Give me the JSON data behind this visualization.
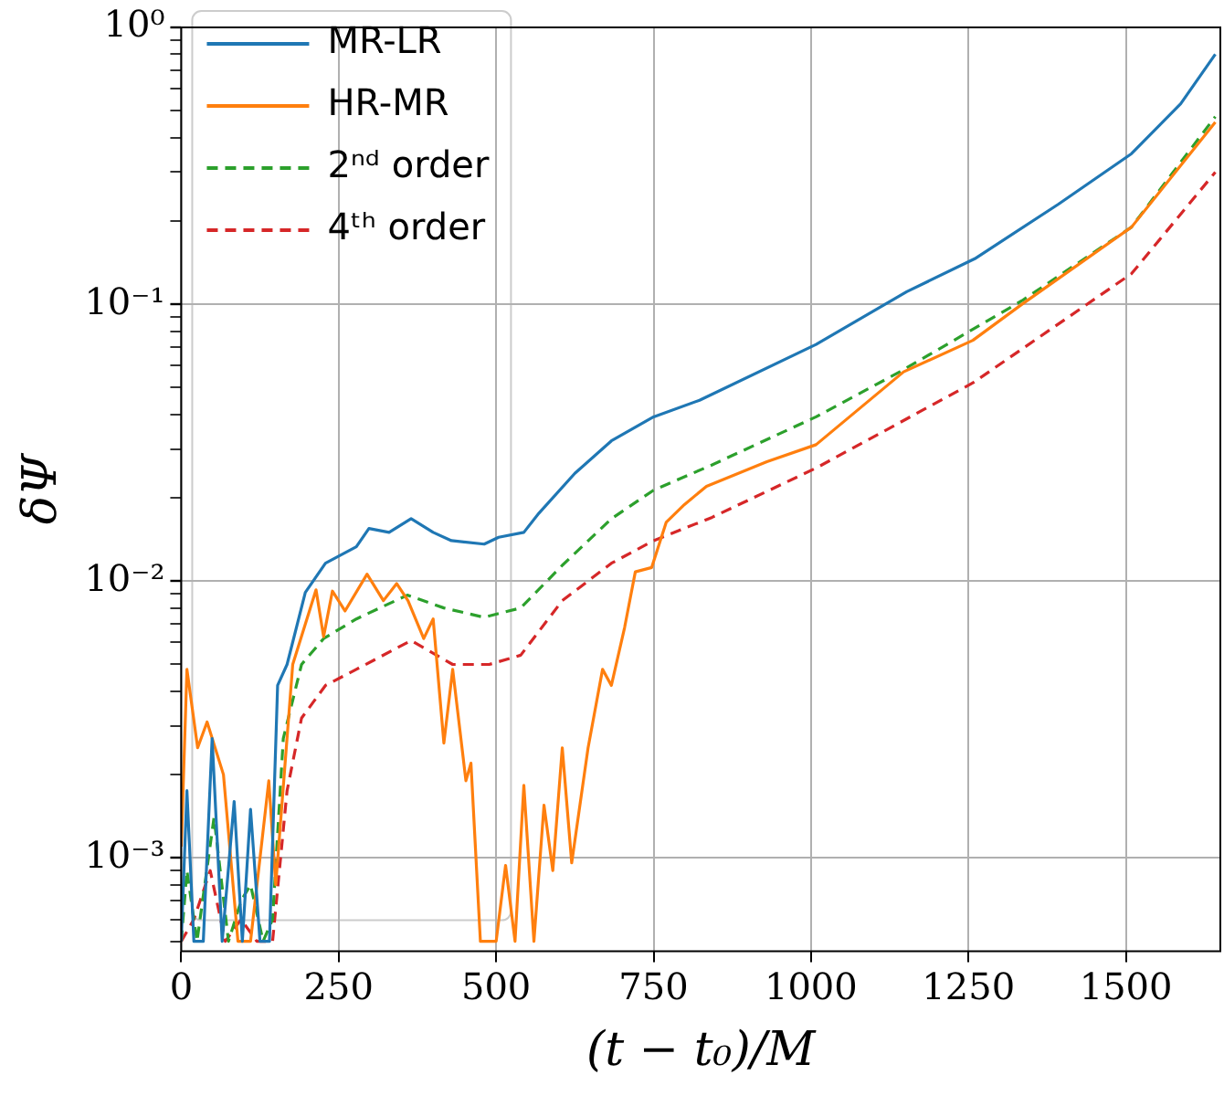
{
  "chart_data": {
    "type": "line",
    "xlabel": "(t − t₀)/M",
    "ylabel": "δΨ",
    "log": "y",
    "grid": true,
    "legend": "top left",
    "marker": "none",
    "xlim": [
      0,
      1650
    ],
    "xticks": [
      0,
      250,
      500,
      750,
      1000,
      1250,
      1500
    ],
    "ylim": [
      0.00046,
      1
    ],
    "yticks": [
      {
        "value": 1,
        "label": "10⁰"
      },
      {
        "value": 0.1,
        "label": "10⁻¹"
      },
      {
        "value": 0.01,
        "label": "10⁻²"
      },
      {
        "value": 0.001,
        "label": "10⁻³"
      },
      {
        "value": 0.0005,
        "label": null
      },
      {
        "value": 0.0006,
        "label": null
      },
      {
        "value": 0.0007,
        "label": null
      },
      {
        "value": 0.0008,
        "label": null
      },
      {
        "value": 0.0009,
        "label": null
      },
      {
        "value": 0.002,
        "label": null
      },
      {
        "value": 0.003,
        "label": null
      },
      {
        "value": 0.004,
        "label": null
      },
      {
        "value": 0.005,
        "label": null
      },
      {
        "value": 0.006,
        "label": null
      },
      {
        "value": 0.007,
        "label": null
      },
      {
        "value": 0.008,
        "label": null
      },
      {
        "value": 0.009,
        "label": null
      },
      {
        "value": 0.02,
        "label": null
      },
      {
        "value": 0.03,
        "label": null
      },
      {
        "value": 0.04,
        "label": null
      },
      {
        "value": 0.05,
        "label": null
      },
      {
        "value": 0.06,
        "label": null
      },
      {
        "value": 0.07,
        "label": null
      },
      {
        "value": 0.08,
        "label": null
      },
      {
        "value": 0.09,
        "label": null
      },
      {
        "value": 0.2,
        "label": null
      },
      {
        "value": 0.3,
        "label": null
      },
      {
        "value": 0.4,
        "label": null
      },
      {
        "value": 0.5,
        "label": null
      },
      {
        "value": 0.6,
        "label": null
      },
      {
        "value": 0.7,
        "label": null
      },
      {
        "value": 0.8,
        "label": null
      },
      {
        "value": 0.9,
        "label": null
      }
    ],
    "series": [
      {
        "name": "MR-LR",
        "color": "#1f77b4",
        "line_style": "solid",
        "x": [
          0,
          9,
          20,
          35,
          49,
          65,
          84,
          97,
          110,
          125,
          140,
          153,
          168,
          197,
          229,
          278,
          298,
          330,
          365,
          400,
          429,
          481,
          504,
          544,
          568,
          625,
          683,
          750,
          823,
          1008,
          1152,
          1260,
          1393,
          1509,
          1587,
          1642
        ],
        "values": [
          0.0005,
          0.00175,
          0.0005,
          0.0005,
          0.0027,
          0.0005,
          0.0016,
          0.0005,
          0.0015,
          0.0005,
          0.0005,
          0.0042,
          0.005,
          0.0091,
          0.0116,
          0.0133,
          0.0155,
          0.015,
          0.0168,
          0.015,
          0.014,
          0.0136,
          0.0144,
          0.015,
          0.0176,
          0.0245,
          0.0321,
          0.0392,
          0.045,
          0.0716,
          0.111,
          0.146,
          0.23,
          0.35,
          0.53,
          0.8
        ]
      },
      {
        "name": "HR-MR",
        "color": "#ff7f0e",
        "line_style": "solid",
        "x": [
          0,
          9,
          26,
          41,
          67,
          90,
          110,
          139,
          150,
          177,
          214,
          226,
          240,
          260,
          295,
          321,
          342,
          360,
          385,
          400,
          417,
          431,
          452,
          460,
          475,
          500,
          515,
          530,
          544,
          560,
          576,
          590,
          605,
          620,
          646,
          669,
          683,
          704,
          721,
          747,
          770,
          799,
          834,
          930,
          1008,
          1147,
          1257,
          1335,
          1509,
          1642
        ],
        "values": [
          0.0011,
          0.0048,
          0.0025,
          0.0031,
          0.002,
          0.0005,
          0.0005,
          0.0019,
          0.0008,
          0.005,
          0.0093,
          0.0063,
          0.0092,
          0.0078,
          0.0106,
          0.0085,
          0.0098,
          0.0085,
          0.0062,
          0.0073,
          0.0026,
          0.0048,
          0.0019,
          0.0022,
          0.0005,
          0.0005,
          0.00094,
          0.0005,
          0.00183,
          0.0005,
          0.00155,
          0.0009,
          0.0025,
          0.00096,
          0.0025,
          0.0048,
          0.0042,
          0.0068,
          0.0108,
          0.0112,
          0.0163,
          0.0189,
          0.022,
          0.027,
          0.0311,
          0.057,
          0.0741,
          0.1,
          0.19,
          0.455
        ]
      },
      {
        "name": "2ⁿᵈ order",
        "color": "#2ca02c",
        "line_style": "dashed",
        "x": [
          0,
          9,
          25,
          52,
          75,
          95,
          110,
          130,
          145,
          162,
          191,
          226,
          278,
          359,
          417,
          481,
          539,
          605,
          683,
          750,
          843,
          1008,
          1141,
          1335,
          1509,
          1642
        ],
        "values": [
          0.0005,
          0.0009,
          0.0005,
          0.0014,
          0.0005,
          0.0007,
          0.0008,
          0.0005,
          0.0006,
          0.0027,
          0.005,
          0.0062,
          0.0073,
          0.0089,
          0.008,
          0.0074,
          0.008,
          0.0114,
          0.0168,
          0.0213,
          0.0263,
          0.0392,
          0.057,
          0.103,
          0.19,
          0.476
        ]
      },
      {
        "name": "4ᵗʰ order",
        "color": "#d62728",
        "line_style": "dashed",
        "x": [
          0,
          20,
          46,
          70,
          95,
          120,
          145,
          168,
          191,
          229,
          278,
          365,
          431,
          489,
          539,
          605,
          683,
          750,
          843,
          1008,
          1257,
          1509,
          1642
        ],
        "values": [
          0.0005,
          0.0006,
          0.0009,
          0.0005,
          0.0006,
          0.0005,
          0.0005,
          0.00175,
          0.0032,
          0.0042,
          0.0048,
          0.0061,
          0.005,
          0.005,
          0.0054,
          0.0085,
          0.0116,
          0.014,
          0.017,
          0.0256,
          0.052,
          0.129,
          0.3
        ]
      }
    ]
  }
}
